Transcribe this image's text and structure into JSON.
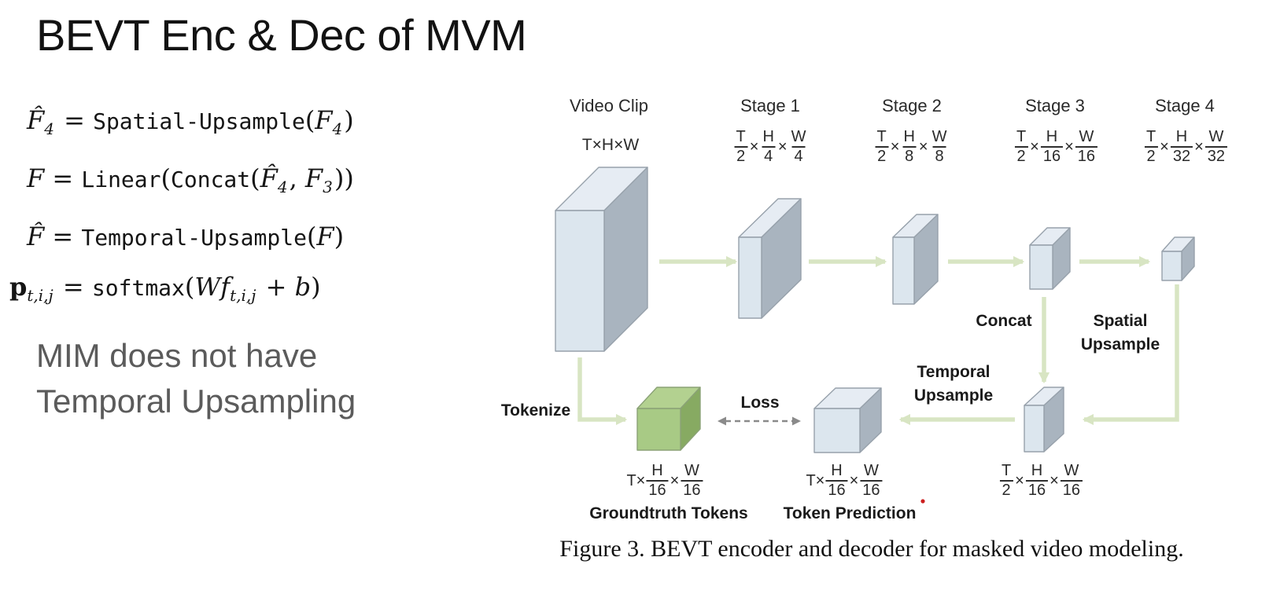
{
  "title": "BEVT Enc & Dec of MVM",
  "note": {
    "line1": "MIM does not have",
    "line2": "Temporal Upsampling"
  },
  "equations": [
    {
      "parts": [
        {
          "t": "F̂",
          "c": "v"
        },
        {
          "t": "4",
          "c": "vs"
        },
        {
          "t": " = ",
          "c": "r"
        },
        {
          "t": "Spatial-Upsample",
          "c": "m"
        },
        {
          "t": "(",
          "c": "r"
        },
        {
          "t": "F",
          "c": "v"
        },
        {
          "t": "4",
          "c": "vs"
        },
        {
          "t": ")",
          "c": "r"
        }
      ]
    },
    {
      "parts": [
        {
          "t": "F",
          "c": "v"
        },
        {
          "t": " = ",
          "c": "r"
        },
        {
          "t": "Linear",
          "c": "m"
        },
        {
          "t": "(",
          "c": "r"
        },
        {
          "t": "Concat",
          "c": "m"
        },
        {
          "t": "(",
          "c": "r"
        },
        {
          "t": "F̂",
          "c": "v"
        },
        {
          "t": "4",
          "c": "vs"
        },
        {
          "t": ", ",
          "c": "r"
        },
        {
          "t": "F",
          "c": "v"
        },
        {
          "t": "3",
          "c": "vs"
        },
        {
          "t": "))",
          "c": "r"
        }
      ]
    },
    {
      "parts": [
        {
          "t": "F̂",
          "c": "v"
        },
        {
          "t": " = ",
          "c": "r"
        },
        {
          "t": "Temporal-Upsample",
          "c": "m"
        },
        {
          "t": "(",
          "c": "r"
        },
        {
          "t": "F",
          "c": "v"
        },
        {
          "t": ")",
          "c": "r"
        }
      ]
    },
    {
      "parts": [
        {
          "t": "p",
          "c": "vb"
        },
        {
          "t": "t,i,j",
          "c": "vs"
        },
        {
          "t": " = ",
          "c": "r"
        },
        {
          "t": "softmax",
          "c": "m"
        },
        {
          "t": "(",
          "c": "r"
        },
        {
          "t": "W",
          "c": "v"
        },
        {
          "t": "f",
          "c": "v"
        },
        {
          "t": "t,i,j",
          "c": "vs"
        },
        {
          "t": " + ",
          "c": "r"
        },
        {
          "t": "b",
          "c": "v"
        },
        {
          "t": ")",
          "c": "r"
        }
      ]
    }
  ],
  "diagram": {
    "times": "×",
    "video_clip": {
      "label": "Video Clip",
      "dims": "T×H×W"
    },
    "stages": [
      {
        "label": "Stage 1",
        "t_num": "T",
        "t_den": "2",
        "h_num": "H",
        "h_den": "4",
        "w_num": "W",
        "w_den": "4"
      },
      {
        "label": "Stage 2",
        "t_num": "T",
        "t_den": "2",
        "h_num": "H",
        "h_den": "8",
        "w_num": "W",
        "w_den": "8"
      },
      {
        "label": "Stage 3",
        "t_num": "T",
        "t_den": "2",
        "h_num": "H",
        "h_den": "16",
        "w_num": "W",
        "w_den": "16"
      },
      {
        "label": "Stage 4",
        "t_num": "T",
        "t_den": "2",
        "h_num": "H",
        "h_den": "32",
        "w_num": "W",
        "w_den": "32"
      }
    ],
    "labels": {
      "concat": "Concat",
      "spatial_1": "Spatial",
      "spatial_2": "Upsample",
      "temporal_1": "Temporal",
      "temporal_2": "Upsample",
      "tokenize": "Tokenize",
      "loss": "Loss",
      "groundtruth": "Groundtruth Tokens",
      "token_prediction": "Token Prediction"
    },
    "bottom_dims": {
      "groundtruth": {
        "prefix": "T×",
        "h_num": "H",
        "h_den": "16",
        "w_num": "W",
        "w_den": "16"
      },
      "token": {
        "prefix": "T×",
        "h_num": "H",
        "h_den": "16",
        "w_num": "W",
        "w_den": "16"
      },
      "decoder": {
        "t_num": "T",
        "t_den": "2",
        "h_num": "H",
        "h_den": "16",
        "w_num": "W",
        "w_den": "16"
      }
    },
    "caption": "Figure 3. BEVT encoder and decoder for masked video modeling."
  },
  "colors": {
    "box_front": "#dce6ee",
    "box_top": "#e6ecf3",
    "box_side": "#a9b4bf",
    "box_border": "#97a1ab",
    "cube_front": "#a8ca85",
    "cube_top": "#b3d190",
    "cube_side": "#87aa62",
    "cube_border": "#8ba277",
    "arrow_green": "#d8e5c3",
    "loss_gray": "#8a8a8a",
    "note_gray": "#5b5b5b",
    "red_dot": "#cc1f1f"
  }
}
